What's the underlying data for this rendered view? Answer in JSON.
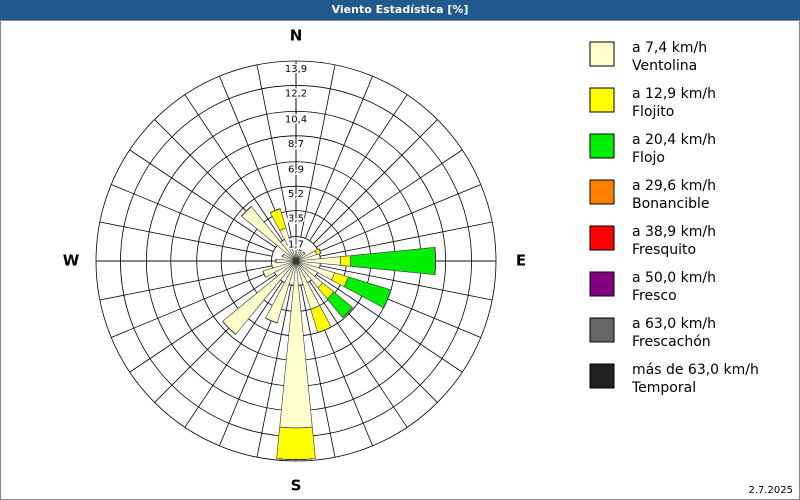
{
  "chart_data": {
    "type": "windrose",
    "title": "Viento Estadística [%]",
    "footer": "2.7.2025",
    "categories": [
      "N",
      null,
      null,
      null,
      "E",
      null,
      null,
      null,
      "S",
      null,
      null,
      null,
      "W",
      null,
      null,
      null
    ],
    "rlim": [
      0,
      13.9
    ],
    "rticks": [
      {
        "value": 1.7,
        "label": "1,7"
      },
      {
        "value": 3.5,
        "label": "3,5"
      },
      {
        "value": 5.2,
        "label": "5,2"
      },
      {
        "value": 6.9,
        "label": "6,9"
      },
      {
        "value": 8.7,
        "label": "8,7"
      },
      {
        "value": 10.4,
        "label": "10,4"
      },
      {
        "value": 12.2,
        "label": "12,2"
      },
      {
        "value": 13.9,
        "label": "13,9"
      }
    ],
    "series": [
      {
        "name": "a 7,4 km/h",
        "description": "Ventolina",
        "color": "#ffffcc",
        "values": [
          1.0,
          0.8,
          0.8,
          1.5,
          3.1,
          2.8,
          2.4,
          3.5,
          11.6,
          4.5,
          6.6,
          2.4,
          1.4,
          1.0,
          4.9,
          2.4
        ]
      },
      {
        "name": "a 12,9 km/h",
        "description": "Flojito",
        "color": "#ffff00",
        "values": [
          0,
          0,
          0,
          0.3,
          0.7,
          1.0,
          1.0,
          1.7,
          2.2,
          0,
          0,
          0,
          0,
          0,
          0,
          1.4
        ]
      },
      {
        "name": "a 20,4 km/h",
        "description": "Flojo",
        "color": "#00ee00",
        "values": [
          0,
          0,
          0,
          0,
          5.9,
          3.1,
          1.7,
          0,
          0,
          0,
          0,
          0,
          0,
          0,
          0,
          0
        ]
      },
      {
        "name": "a 29,6 km/h",
        "description": "Bonancible",
        "color": "#ff8000",
        "values": [
          0,
          0,
          0,
          0,
          0,
          0,
          0,
          0,
          0,
          0,
          0,
          0,
          0,
          0,
          0,
          0
        ]
      },
      {
        "name": "a 38,9 km/h",
        "description": "Fresquito",
        "color": "#ff0000",
        "values": [
          0,
          0,
          0,
          0,
          0,
          0,
          0,
          0,
          0,
          0,
          0,
          0,
          0,
          0,
          0,
          0
        ]
      },
      {
        "name": "a 50,0 km/h",
        "description": "Fresco",
        "color": "#800080",
        "values": [
          0,
          0,
          0,
          0,
          0,
          0,
          0,
          0,
          0,
          0,
          0,
          0,
          0,
          0,
          0,
          0
        ]
      },
      {
        "name": "a 63,0 km/h",
        "description": "Frescachón",
        "color": "#666666",
        "values": [
          0,
          0,
          0,
          0,
          0,
          0,
          0,
          0,
          0,
          0,
          0,
          0,
          0,
          0,
          0,
          0
        ]
      },
      {
        "name": "más de 63,0 km/h",
        "description": "Temporal",
        "color": "#222222",
        "values": [
          0,
          0,
          0,
          0,
          0,
          0,
          0,
          0,
          0,
          0,
          0,
          0,
          0,
          0,
          0,
          0
        ]
      }
    ]
  }
}
